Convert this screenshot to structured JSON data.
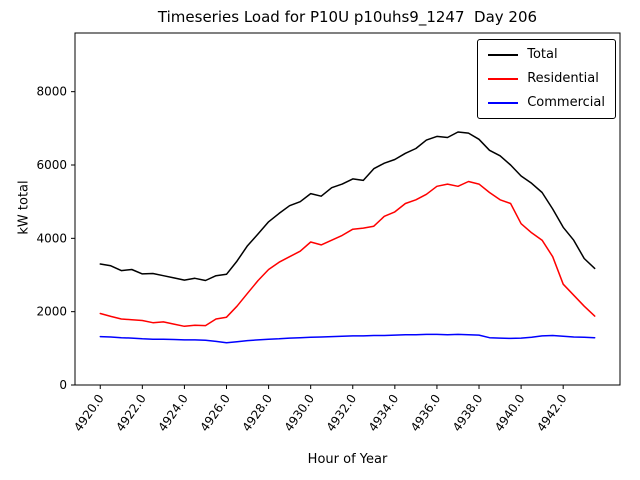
{
  "chart_data": {
    "type": "line",
    "title": "Timeseries Load for P10U p10uhs9_1247  Day 206",
    "xlabel": "Hour of Year",
    "ylabel": "kW total",
    "xlim": [
      4918.8,
      4944.7
    ],
    "ylim": [
      0,
      9600
    ],
    "grid": false,
    "legend_position": "upper right",
    "x_ticks": [
      4920,
      4922,
      4924,
      4926,
      4928,
      4930,
      4932,
      4934,
      4936,
      4938,
      4940,
      4942
    ],
    "x_tick_labels": [
      "4920.0",
      "4922.0",
      "4924.0",
      "4926.0",
      "4928.0",
      "4930.0",
      "4932.0",
      "4934.0",
      "4936.0",
      "4938.0",
      "4940.0",
      "4942.0"
    ],
    "y_ticks": [
      0,
      2000,
      4000,
      6000,
      8000
    ],
    "y_tick_labels": [
      "0",
      "2000",
      "4000",
      "6000",
      "8000"
    ],
    "x": [
      4920.0,
      4920.5,
      4921.0,
      4921.5,
      4922.0,
      4922.5,
      4923.0,
      4923.5,
      4924.0,
      4924.5,
      4925.0,
      4925.5,
      4926.0,
      4926.5,
      4927.0,
      4927.5,
      4928.0,
      4928.5,
      4929.0,
      4929.5,
      4930.0,
      4930.5,
      4931.0,
      4931.5,
      4932.0,
      4932.5,
      4933.0,
      4933.5,
      4934.0,
      4934.5,
      4935.0,
      4935.5,
      4936.0,
      4936.5,
      4937.0,
      4937.5,
      4938.0,
      4938.5,
      4939.0,
      4939.5,
      4940.0,
      4940.5,
      4941.0,
      4941.5,
      4942.0,
      4942.5,
      4943.0,
      4943.5
    ],
    "series": [
      {
        "name": "Total",
        "color": "#000000",
        "values": [
          3300,
          3250,
          3120,
          3150,
          3030,
          3040,
          2980,
          2920,
          2860,
          2910,
          2850,
          2980,
          3020,
          3380,
          3800,
          4120,
          4450,
          4680,
          4890,
          5000,
          5220,
          5150,
          5380,
          5480,
          5620,
          5580,
          5900,
          6050,
          6150,
          6320,
          6450,
          6680,
          6780,
          6750,
          6900,
          6870,
          6700,
          6400,
          6250,
          6000,
          5700,
          5500,
          5250,
          4800,
          4300,
          3950,
          3450,
          3180
        ]
      },
      {
        "name": "Residential",
        "color": "#ff0000",
        "values": [
          1950,
          1870,
          1800,
          1780,
          1760,
          1700,
          1720,
          1660,
          1600,
          1630,
          1620,
          1800,
          1850,
          2150,
          2500,
          2850,
          3150,
          3350,
          3500,
          3650,
          3900,
          3820,
          3950,
          4080,
          4250,
          4280,
          4330,
          4600,
          4720,
          4950,
          5050,
          5200,
          5420,
          5480,
          5420,
          5550,
          5480,
          5250,
          5050,
          4950,
          4400,
          4150,
          3950,
          3500,
          2750,
          2450,
          2150,
          1880
        ]
      },
      {
        "name": "Commercial",
        "color": "#0000ff",
        "values": [
          1320,
          1310,
          1290,
          1280,
          1260,
          1250,
          1250,
          1240,
          1230,
          1230,
          1220,
          1190,
          1150,
          1180,
          1210,
          1230,
          1250,
          1260,
          1280,
          1290,
          1300,
          1310,
          1320,
          1330,
          1340,
          1340,
          1350,
          1350,
          1360,
          1370,
          1370,
          1380,
          1380,
          1370,
          1380,
          1370,
          1360,
          1290,
          1280,
          1270,
          1280,
          1300,
          1340,
          1350,
          1330,
          1310,
          1300,
          1290
        ]
      }
    ]
  }
}
